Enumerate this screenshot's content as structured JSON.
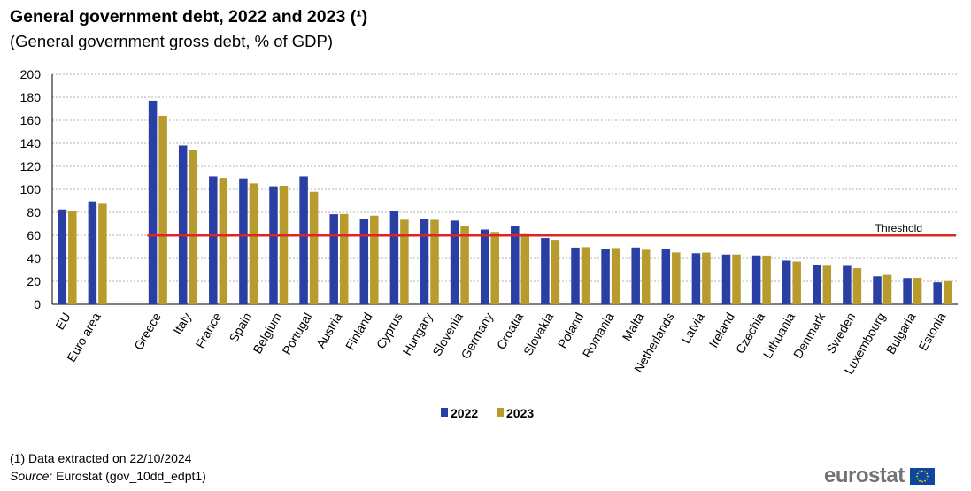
{
  "header": {
    "title": "General government debt, 2022 and 2023 (¹)",
    "subtitle": "(General government  gross debt, % of GDP)"
  },
  "footer": {
    "note": "(1) Data extracted  on 22/10/2024",
    "source_label": "Source:",
    "source_text": " Eurostat (gov_10dd_edpt1)"
  },
  "logo": {
    "text": "eurostat",
    "flag_icon": "eu-flag-icon",
    "flag_color": "#0e47a1",
    "star_color": "#ffdd00"
  },
  "colors": {
    "series_2022": "#2a3fa3",
    "series_2023": "#b89b2d",
    "threshold": "#e02424",
    "grid": "#b0b0b0"
  },
  "chart_data": {
    "type": "bar",
    "title": "General government debt, 2022 and 2023 (¹)",
    "subtitle": "(General government  gross debt, % of GDP)",
    "categories": [
      "EU",
      "Euro area",
      "Greece",
      "Italy",
      "France",
      "Spain",
      "Belgium",
      "Portugal",
      "Austria",
      "Finland",
      "Cyprus",
      "Hungary",
      "Slovenia",
      "Germany",
      "Croatia",
      "Slovakia",
      "Poland",
      "Romania",
      "Malta",
      "Netherlands",
      "Latvia",
      "Ireland",
      "Czechia",
      "Lithuania",
      "Denmark",
      "Sweden",
      "Luxembourg",
      "Bulgaria",
      "Estonia"
    ],
    "series": [
      {
        "name": "2022",
        "values": [
          82.5,
          89.5,
          177.0,
          138.1,
          111.2,
          109.5,
          102.6,
          111.2,
          78.4,
          74.0,
          81.0,
          73.9,
          72.8,
          65.0,
          68.2,
          57.7,
          49.3,
          48.3,
          49.4,
          48.3,
          44.4,
          43.3,
          42.5,
          38.1,
          34.1,
          33.5,
          24.4,
          22.9,
          19.1
        ]
      },
      {
        "name": "2023",
        "values": [
          80.8,
          87.4,
          163.9,
          134.6,
          109.9,
          105.1,
          103.1,
          97.9,
          78.6,
          77.1,
          73.6,
          73.5,
          68.4,
          62.9,
          61.8,
          56.1,
          49.7,
          48.9,
          47.4,
          45.1,
          45.0,
          43.3,
          42.4,
          37.3,
          33.6,
          31.5,
          25.7,
          23.1,
          20.2
        ]
      }
    ],
    "threshold": {
      "label": "Threshold",
      "value": 60
    },
    "ylim": [
      0,
      200
    ],
    "yticks": [
      0,
      20,
      40,
      60,
      80,
      100,
      120,
      140,
      160,
      180,
      200
    ],
    "xlabel": "",
    "ylabel": "",
    "grid": true,
    "legend_position": "bottom-center"
  }
}
